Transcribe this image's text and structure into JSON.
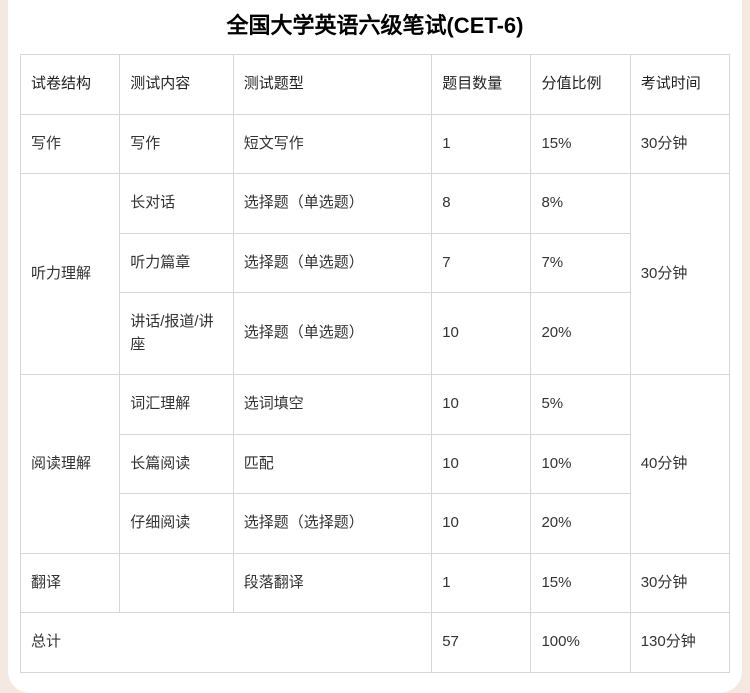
{
  "title": "全国大学英语六级笔试(CET-6)",
  "headers": {
    "structure": "试卷结构",
    "content": "测试内容",
    "type": "测试题型",
    "count": "题目数量",
    "score": "分值比例",
    "time": "考试时间"
  },
  "sections": {
    "writing": {
      "name": "写作",
      "rows": [
        {
          "content": "写作",
          "type": "短文写作",
          "count": "1",
          "score": "15%"
        }
      ],
      "time": "30分钟"
    },
    "listening": {
      "name": "听力理解",
      "rows": [
        {
          "content": "长对话",
          "type": "选择题（单选题）",
          "count": "8",
          "score": "8%"
        },
        {
          "content": "听力篇章",
          "type": "选择题（单选题）",
          "count": "7",
          "score": "7%"
        },
        {
          "content": "讲话/报道/讲座",
          "type": "选择题（单选题）",
          "count": "10",
          "score": "20%"
        }
      ],
      "time": "30分钟"
    },
    "reading": {
      "name": "阅读理解",
      "rows": [
        {
          "content": "词汇理解",
          "type": "选词填空",
          "count": "10",
          "score": "5%"
        },
        {
          "content": "长篇阅读",
          "type": "匹配",
          "count": "10",
          "score": "10%"
        },
        {
          "content": "仔细阅读",
          "type": "选择题（选择题）",
          "count": "10",
          "score": "20%"
        }
      ],
      "time": "40分钟"
    },
    "translation": {
      "name": "翻译",
      "rows": [
        {
          "content": "",
          "type": "段落翻译",
          "count": "1",
          "score": "15%"
        }
      ],
      "time": "30分钟"
    }
  },
  "total": {
    "name": "总计",
    "count": "57",
    "score": "100%",
    "time": "130分钟"
  },
  "style": {
    "border_color": "#d7d7d7",
    "text_color": "#333",
    "title_color": "#000",
    "card_bg": "#ffffff",
    "page_bg": "#f4e9e0",
    "title_fontsize": 22,
    "cell_fontsize": 15,
    "card_radius": 22
  }
}
